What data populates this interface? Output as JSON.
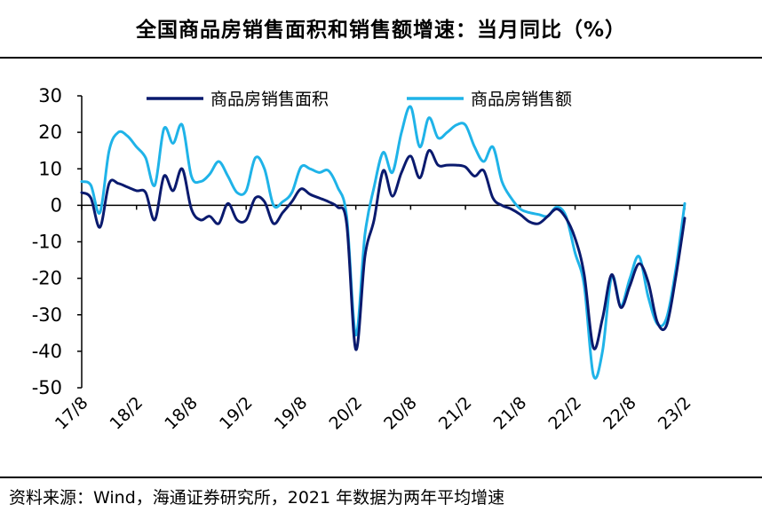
{
  "header": {
    "title": "全国商品房销售面积和销售额增速：当月同比（%）"
  },
  "footer": {
    "source": "资料来源：Wind，海通证券研究所，2021 年数据为两年平均增速"
  },
  "chart_data": {
    "type": "line",
    "title": "全国商品房销售面积和销售额增速：当月同比（%）",
    "xlabel": "",
    "ylabel": "",
    "ylim": [
      -50,
      30
    ],
    "yticks": [
      30,
      20,
      10,
      0,
      -10,
      -20,
      -30,
      -40,
      -50
    ],
    "x_tick_labels": [
      "17/8",
      "18/2",
      "18/8",
      "19/2",
      "19/8",
      "20/2",
      "20/8",
      "21/2",
      "21/8",
      "22/2",
      "22/8",
      "23/2"
    ],
    "x": [
      "17/8",
      "17/9",
      "17/10",
      "17/11",
      "17/12",
      "18/1",
      "18/2",
      "18/3",
      "18/4",
      "18/5",
      "18/6",
      "18/7",
      "18/8",
      "18/9",
      "18/10",
      "18/11",
      "18/12",
      "19/1",
      "19/2",
      "19/3",
      "19/4",
      "19/5",
      "19/6",
      "19/7",
      "19/8",
      "19/9",
      "19/10",
      "19/11",
      "19/12",
      "20/1",
      "20/2",
      "20/3",
      "20/4",
      "20/5",
      "20/6",
      "20/7",
      "20/8",
      "20/9",
      "20/10",
      "20/11",
      "20/12",
      "21/1",
      "21/2",
      "21/3",
      "21/4",
      "21/5",
      "21/6",
      "21/7",
      "21/8",
      "21/9",
      "21/10",
      "21/11",
      "21/12",
      "22/1",
      "22/2",
      "22/3",
      "22/4",
      "22/5",
      "22/6",
      "22/7",
      "22/8",
      "22/9",
      "22/10",
      "22/11",
      "22/12",
      "23/1",
      "23/2"
    ],
    "grid": false,
    "legend_position": "top",
    "series": [
      {
        "name": "商品房销售面积",
        "color": "#0a1a6e",
        "values": [
          3.5,
          2,
          -6,
          6,
          6,
          5,
          4,
          3.5,
          -4,
          8,
          4,
          10,
          -1,
          -4,
          -3,
          -5,
          0.5,
          -4,
          -4,
          2,
          1,
          -5,
          -2,
          1,
          4.5,
          3,
          2,
          1,
          -0.5,
          -5,
          -39.5,
          -14,
          -4,
          9.5,
          2.5,
          9,
          13.5,
          7.5,
          15,
          11,
          11,
          11,
          10.5,
          8,
          9.5,
          2,
          0,
          -1,
          -2.5,
          -4.5,
          -5,
          -3,
          -1,
          -3.5,
          -9,
          -19,
          -39,
          -31,
          -19,
          -28,
          -22,
          -16,
          -21,
          -32,
          -33,
          -20,
          -3.5
        ]
      },
      {
        "name": "商品房销售额",
        "color": "#1fb3e8",
        "values": [
          6.5,
          5.5,
          -2,
          15,
          20,
          19,
          16,
          13,
          5.5,
          21,
          17,
          22,
          8,
          6.5,
          8.5,
          12,
          8,
          3.5,
          4,
          13,
          10,
          0,
          1,
          3.5,
          10.5,
          10,
          9,
          9.5,
          5,
          -3,
          -35.5,
          -8,
          5,
          14.5,
          9,
          20,
          27,
          16,
          24,
          18.5,
          20,
          22,
          22,
          16,
          12,
          16,
          6.5,
          2,
          -1,
          -2,
          -2.5,
          -3,
          -0.5,
          -3,
          -13,
          -22,
          -46.5,
          -40,
          -19.5,
          -27.5,
          -20,
          -14,
          -25,
          -32.5,
          -31,
          -18,
          0.5
        ]
      }
    ]
  }
}
